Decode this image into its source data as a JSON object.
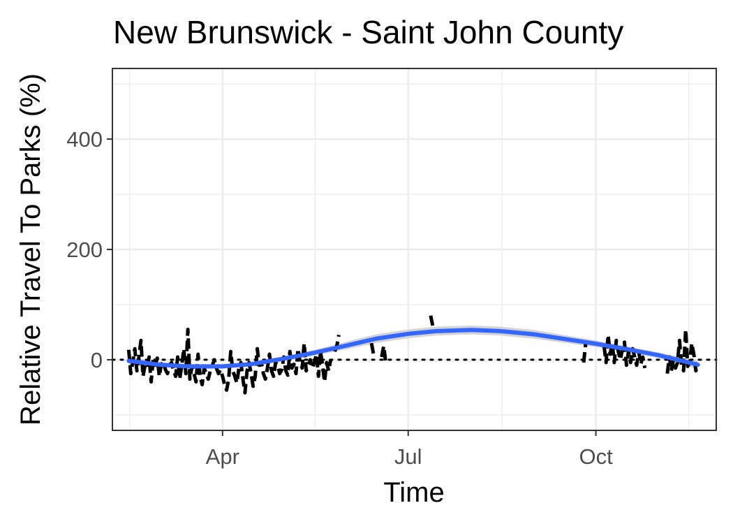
{
  "chart_data": {
    "type": "line",
    "title": "New Brunswick - Saint John County",
    "xlabel": "Time",
    "ylabel": "Relative Travel To Parks (%)",
    "ylim": [
      -128,
      528
    ],
    "y_ticks": [
      {
        "label": "0",
        "value": 0
      },
      {
        "label": "200",
        "value": 200
      },
      {
        "label": "400",
        "value": 400
      }
    ],
    "x_ticks": [
      {
        "label": "Apr",
        "value": "2020-04-01"
      },
      {
        "label": "Jul",
        "value": "2020-07-01"
      },
      {
        "label": "Oct",
        "value": "2020-10-01"
      }
    ],
    "xlim": [
      "2020-02-07",
      "2020-11-29"
    ],
    "grid": true,
    "reference_line": {
      "y": 0,
      "style": "dotted"
    },
    "colors": {
      "series": "#000000",
      "smooth": "#3366ff",
      "band": "#cccccc"
    },
    "series": [
      {
        "values": [
          {
            "x": "2020-02-15",
            "y": 18
          },
          {
            "x": "2020-02-16",
            "y": -25
          },
          {
            "x": "2020-02-17",
            "y": -5
          },
          {
            "x": "2020-02-18",
            "y": 20
          },
          {
            "x": "2020-02-19",
            "y": -20
          },
          {
            "x": "2020-02-20",
            "y": 5
          },
          {
            "x": "2020-02-21",
            "y": 35
          },
          {
            "x": "2020-02-22",
            "y": -30
          },
          {
            "x": "2020-02-23",
            "y": -10
          },
          {
            "x": "2020-02-24",
            "y": -15
          },
          {
            "x": "2020-02-25",
            "y": 5
          },
          {
            "x": "2020-02-26",
            "y": -40
          },
          {
            "x": "2020-02-27",
            "y": 0
          },
          {
            "x": "2020-02-28",
            "y": -10
          },
          {
            "x": "2020-02-29",
            "y": 3
          },
          {
            "x": "2020-03-01",
            "y": -30
          },
          {
            "x": "2020-03-02",
            "y": -8
          },
          {
            "x": "2020-03-03",
            "y": -5
          },
          {
            "x": "2020-03-04",
            "y": -18
          },
          {
            "x": "2020-03-05",
            "y": -25
          },
          {
            "x": "2020-03-06",
            "y": -10
          },
          {
            "x": "2020-03-07",
            "y": -5
          },
          {
            "x": "2020-03-08",
            "y": -20
          },
          {
            "x": "2020-03-09",
            "y": -30
          },
          {
            "x": "2020-03-10",
            "y": 5
          },
          {
            "x": "2020-03-11",
            "y": -35
          },
          {
            "x": "2020-03-12",
            "y": -10
          },
          {
            "x": "2020-03-13",
            "y": 20
          },
          {
            "x": "2020-03-14",
            "y": -25
          },
          {
            "x": "2020-03-15",
            "y": 55
          },
          {
            "x": "2020-03-16",
            "y": -35
          },
          {
            "x": "2020-03-17",
            "y": -12
          },
          {
            "x": "2020-03-18",
            "y": -25
          },
          {
            "x": "2020-03-19",
            "y": -40
          },
          {
            "x": "2020-03-20",
            "y": 10
          },
          {
            "x": "2020-03-21",
            "y": -30
          },
          {
            "x": "2020-03-22",
            "y": -45
          },
          {
            "x": "2020-03-23",
            "y": -15
          },
          {
            "x": "2020-03-24",
            "y": -25
          },
          {
            "x": "2020-03-25",
            "y": -35
          },
          {
            "x": "2020-03-26",
            "y": -20
          },
          {
            "x": "2020-03-27",
            "y": -10
          },
          {
            "x": "2020-03-28",
            "y": 0
          },
          {
            "x": "2020-03-29",
            "y": -15
          },
          {
            "x": "2020-03-30",
            "y": -25
          },
          {
            "x": "2020-03-31",
            "y": -18
          },
          {
            "x": "2020-04-01",
            "y": -30
          },
          {
            "x": "2020-04-02",
            "y": -45
          },
          {
            "x": "2020-04-03",
            "y": -55
          },
          {
            "x": "2020-04-04",
            "y": -35
          },
          {
            "x": "2020-04-05",
            "y": 15
          },
          {
            "x": "2020-04-06",
            "y": -20
          },
          {
            "x": "2020-04-07",
            "y": -30
          },
          {
            "x": "2020-04-08",
            "y": -42
          },
          {
            "x": "2020-04-09",
            "y": -15
          },
          {
            "x": "2020-04-10",
            "y": -5
          },
          {
            "x": "2020-04-11",
            "y": -35
          },
          {
            "x": "2020-04-12",
            "y": -60
          },
          {
            "x": "2020-04-13",
            "y": -20
          },
          {
            "x": "2020-04-14",
            "y": -5
          },
          {
            "x": "2020-04-15",
            "y": -25
          },
          {
            "x": "2020-04-16",
            "y": -48
          },
          {
            "x": "2020-04-17",
            "y": -30
          },
          {
            "x": "2020-04-18",
            "y": 20
          },
          {
            "x": "2020-04-19",
            "y": -10
          },
          {
            "x": "2020-04-20",
            "y": -5
          },
          {
            "x": "2020-04-21",
            "y": -25
          },
          {
            "x": "2020-04-22",
            "y": -35
          },
          {
            "x": "2020-04-23",
            "y": -15
          },
          {
            "x": "2020-04-24",
            "y": 10
          },
          {
            "x": "2020-04-25",
            "y": -20
          },
          {
            "x": "2020-04-26",
            "y": -30
          },
          {
            "x": "2020-04-27",
            "y": -5
          },
          {
            "x": "2020-04-28",
            "y": -10
          },
          {
            "x": "2020-04-29",
            "y": -25
          },
          {
            "x": "2020-04-30",
            "y": -18
          },
          {
            "x": "2020-05-01",
            "y": 5
          },
          {
            "x": "2020-05-02",
            "y": -20
          },
          {
            "x": "2020-05-03",
            "y": -28
          },
          {
            "x": "2020-05-04",
            "y": 15
          },
          {
            "x": "2020-05-05",
            "y": -15
          },
          {
            "x": "2020-05-06",
            "y": -8
          },
          {
            "x": "2020-05-07",
            "y": -25
          },
          {
            "x": "2020-05-08",
            "y": 20
          },
          {
            "x": "2020-05-09",
            "y": -5
          },
          {
            "x": "2020-05-10",
            "y": -15
          },
          {
            "x": "2020-05-11",
            "y": 30
          },
          {
            "x": "2020-05-12",
            "y": -20
          },
          {
            "x": "2020-05-13",
            "y": -10
          },
          {
            "x": "2020-05-14",
            "y": 0
          },
          {
            "x": "2020-05-15",
            "y": -15
          },
          {
            "x": "2020-05-16",
            "y": -5
          },
          {
            "x": "2020-05-17",
            "y": 10
          },
          {
            "x": "2020-05-18",
            "y": -30
          },
          {
            "x": "2020-05-19",
            "y": 15
          },
          {
            "x": "2020-05-20",
            "y": -10
          },
          {
            "x": "2020-05-21",
            "y": -40
          },
          {
            "x": "2020-05-22",
            "y": -5
          },
          {
            "x": "2020-05-23",
            "y": -20
          },
          {
            "x": "2020-05-24",
            "y": 0
          },
          {
            "x": "2020-05-26",
            "y": 15
          },
          {
            "x": "2020-05-27",
            "y": 25
          },
          {
            "x": "2020-05-28",
            "y": 45
          },
          {
            "x": "2020-06-13",
            "y": 30
          },
          {
            "x": "2020-06-14",
            "y": 10
          },
          {
            "x": "2020-06-18",
            "y": 5
          },
          {
            "x": "2020-06-19",
            "y": 25
          },
          {
            "x": "2020-06-20",
            "y": -5
          },
          {
            "x": "2020-07-12",
            "y": 80
          },
          {
            "x": "2020-07-13",
            "y": 62
          },
          {
            "x": "2020-09-25",
            "y": -5
          },
          {
            "x": "2020-09-26",
            "y": 30
          },
          {
            "x": "2020-09-28",
            "y": -8
          },
          {
            "x": "2020-10-05",
            "y": 25
          },
          {
            "x": "2020-10-06",
            "y": -5
          },
          {
            "x": "2020-10-07",
            "y": 45
          },
          {
            "x": "2020-10-08",
            "y": 10
          },
          {
            "x": "2020-10-09",
            "y": 30
          },
          {
            "x": "2020-10-10",
            "y": -5
          },
          {
            "x": "2020-10-11",
            "y": 35
          },
          {
            "x": "2020-10-12",
            "y": 15
          },
          {
            "x": "2020-10-13",
            "y": 0
          },
          {
            "x": "2020-10-14",
            "y": 20
          },
          {
            "x": "2020-10-15",
            "y": 32
          },
          {
            "x": "2020-10-16",
            "y": -10
          },
          {
            "x": "2020-10-17",
            "y": 15
          },
          {
            "x": "2020-10-18",
            "y": -5
          },
          {
            "x": "2020-10-19",
            "y": 20
          },
          {
            "x": "2020-10-20",
            "y": 5
          },
          {
            "x": "2020-10-21",
            "y": -10
          },
          {
            "x": "2020-10-22",
            "y": 15
          },
          {
            "x": "2020-10-23",
            "y": -8
          },
          {
            "x": "2020-10-24",
            "y": 5
          },
          {
            "x": "2020-10-25",
            "y": -15
          },
          {
            "x": "2020-11-05",
            "y": -25
          },
          {
            "x": "2020-11-06",
            "y": 5
          },
          {
            "x": "2020-11-07",
            "y": -20
          },
          {
            "x": "2020-11-08",
            "y": 0
          },
          {
            "x": "2020-11-09",
            "y": -15
          },
          {
            "x": "2020-11-10",
            "y": -5
          },
          {
            "x": "2020-11-11",
            "y": 35
          },
          {
            "x": "2020-11-12",
            "y": -10
          },
          {
            "x": "2020-11-13",
            "y": -20
          },
          {
            "x": "2020-11-14",
            "y": 55
          },
          {
            "x": "2020-11-15",
            "y": -12
          },
          {
            "x": "2020-11-16",
            "y": -5
          },
          {
            "x": "2020-11-17",
            "y": 30
          },
          {
            "x": "2020-11-18",
            "y": 10
          },
          {
            "x": "2020-11-19",
            "y": -20
          },
          {
            "x": "2020-11-20",
            "y": -10
          }
        ]
      }
    ],
    "smooth": [
      {
        "x": "2020-02-15",
        "y": -2,
        "se": 7
      },
      {
        "x": "2020-03-01",
        "y": -9,
        "se": 5
      },
      {
        "x": "2020-03-15",
        "y": -12,
        "se": 4
      },
      {
        "x": "2020-04-01",
        "y": -12,
        "se": 4
      },
      {
        "x": "2020-04-15",
        "y": -8,
        "se": 4
      },
      {
        "x": "2020-05-01",
        "y": 2,
        "se": 4
      },
      {
        "x": "2020-05-15",
        "y": 12,
        "se": 5
      },
      {
        "x": "2020-06-01",
        "y": 26,
        "se": 7
      },
      {
        "x": "2020-06-15",
        "y": 38,
        "se": 8
      },
      {
        "x": "2020-07-01",
        "y": 47,
        "se": 8
      },
      {
        "x": "2020-07-15",
        "y": 52,
        "se": 8
      },
      {
        "x": "2020-08-01",
        "y": 54,
        "se": 8
      },
      {
        "x": "2020-08-15",
        "y": 52,
        "se": 8
      },
      {
        "x": "2020-09-01",
        "y": 46,
        "se": 8
      },
      {
        "x": "2020-09-15",
        "y": 38,
        "se": 7
      },
      {
        "x": "2020-10-01",
        "y": 29,
        "se": 6
      },
      {
        "x": "2020-10-15",
        "y": 20,
        "se": 5
      },
      {
        "x": "2020-11-01",
        "y": 8,
        "se": 5
      },
      {
        "x": "2020-11-10",
        "y": 0,
        "se": 6
      },
      {
        "x": "2020-11-20",
        "y": -9,
        "se": 8
      }
    ]
  }
}
